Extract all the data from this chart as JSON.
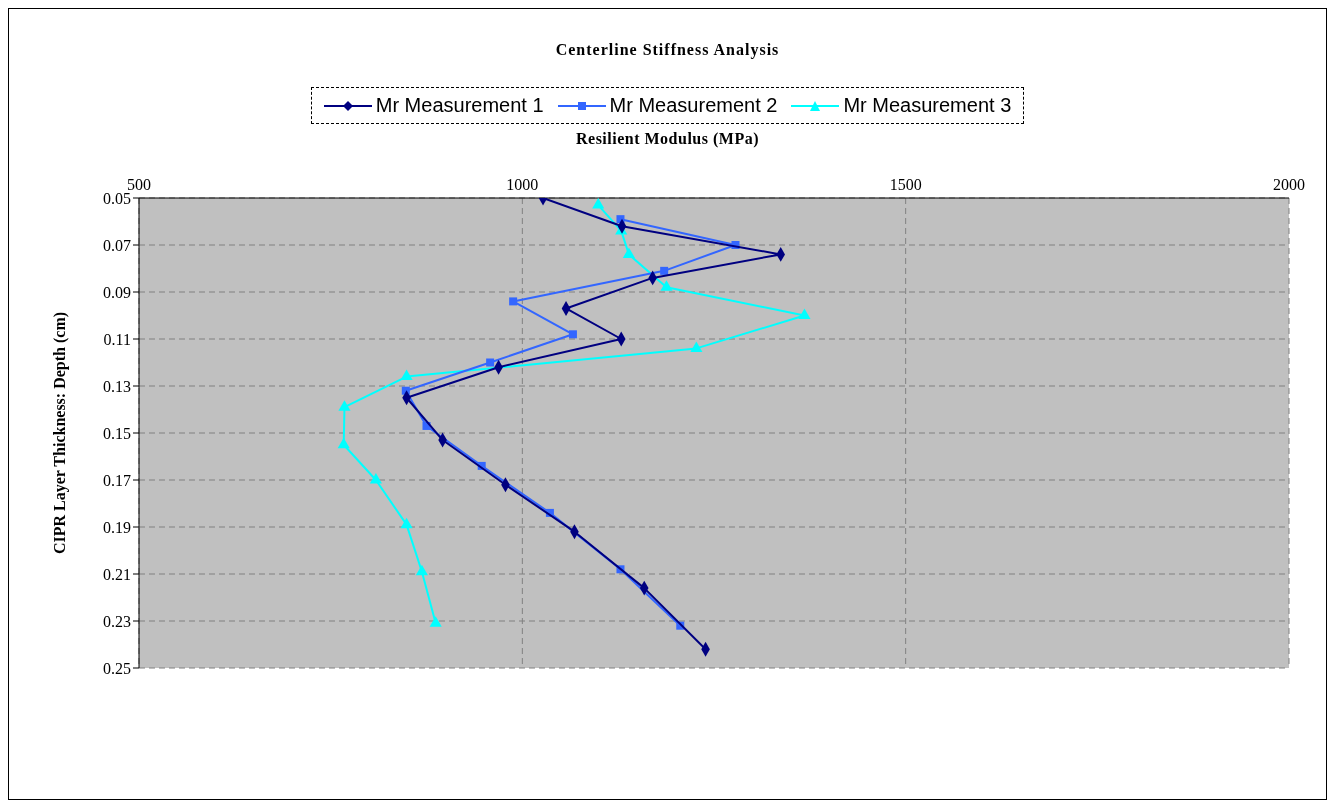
{
  "chart_data": {
    "type": "line",
    "title": "Centerline Stiffness Analysis",
    "xlabel": "Resilient Modulus (MPa)",
    "ylabel": "CIPR Layer Thickness: Depth (cm)",
    "xlim": [
      500,
      2000
    ],
    "xticks": [
      500,
      1000,
      1500,
      2000
    ],
    "ylim": [
      0.25,
      0.05
    ],
    "yticks": [
      0.05,
      0.07,
      0.09,
      0.11,
      0.13,
      0.15,
      0.17,
      0.19,
      0.21,
      0.23,
      0.25
    ],
    "grid": true,
    "legend": "top",
    "line_style": "solid",
    "series": [
      {
        "name": "Mr Measurement 1",
        "color": "#000080",
        "marker": "diamond",
        "x": [
          1027,
          1130,
          1337,
          1170,
          1057,
          1129,
          969,
          849,
          896,
          978,
          1068,
          1159,
          1239
        ],
        "values": [
          0.05,
          0.062,
          0.074,
          0.084,
          0.097,
          0.11,
          0.122,
          0.135,
          0.153,
          0.172,
          0.192,
          0.216,
          0.242
        ]
      },
      {
        "name": "Mr Measurement 2",
        "color": "#3366ff",
        "marker": "square",
        "x": [
          1128,
          1278,
          1185,
          988,
          1066,
          958,
          848,
          875,
          947,
          1036,
          1128,
          1206
        ],
        "values": [
          0.059,
          0.07,
          0.081,
          0.094,
          0.108,
          0.12,
          0.132,
          0.147,
          0.164,
          0.184,
          0.208,
          0.232
        ]
      },
      {
        "name": "Mr Measurement 3",
        "color": "#00ffff",
        "marker": "triangle",
        "x": [
          1099,
          1129,
          1139,
          1188,
          1368,
          1227,
          849,
          768,
          767,
          809,
          849,
          869,
          887
        ],
        "values": [
          0.053,
          0.064,
          0.074,
          0.088,
          0.1,
          0.114,
          0.126,
          0.139,
          0.155,
          0.17,
          0.189,
          0.209,
          0.231
        ]
      }
    ]
  }
}
